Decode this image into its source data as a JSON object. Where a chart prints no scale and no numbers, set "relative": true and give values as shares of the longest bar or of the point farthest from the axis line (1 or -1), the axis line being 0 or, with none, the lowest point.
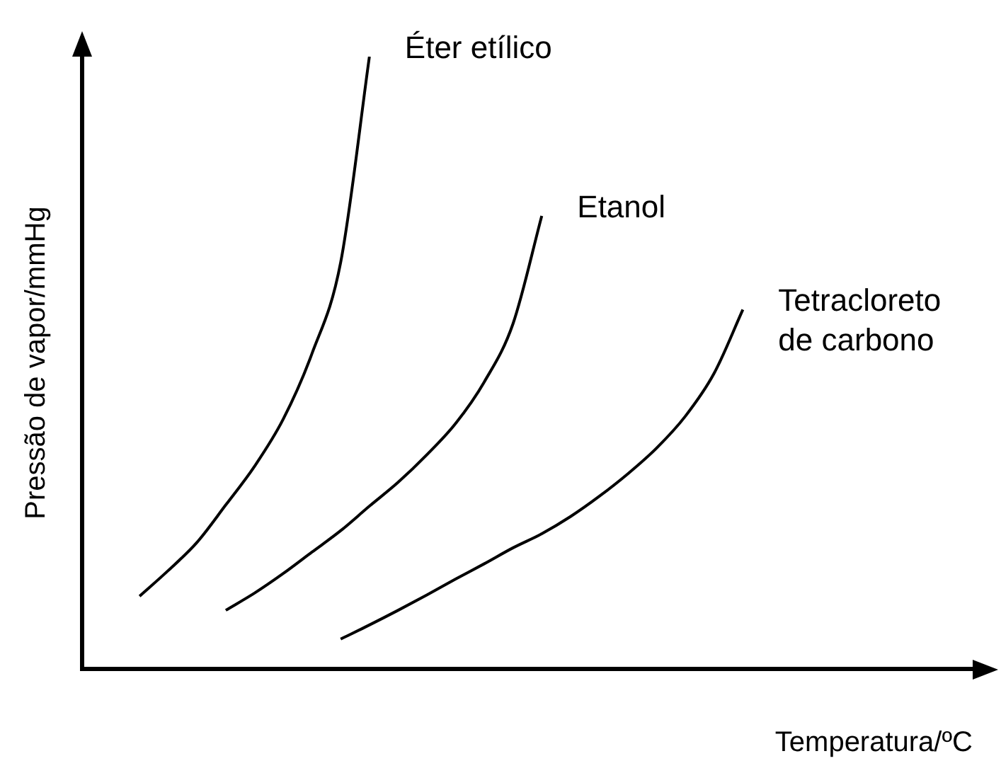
{
  "chart_data": {
    "type": "line",
    "relative": true,
    "xlabel": "Temperatura/ºC",
    "ylabel": "Pressão de vapor/mmHg",
    "legend": false,
    "grid": false,
    "marker": "none",
    "line_style": "solid",
    "categories": [
      null,
      null,
      null,
      null,
      null,
      null,
      null,
      null,
      null,
      null,
      null,
      null,
      null,
      null,
      null,
      null,
      null,
      null,
      null,
      null,
      null,
      null,
      null,
      null,
      null,
      null,
      null,
      null,
      null,
      null,
      null,
      null
    ],
    "series": [
      {
        "name": "Éter etílico",
        "color": "#000000",
        "values": [
          null,
          null,
          0.119,
          0.161,
          0.207,
          0.268,
          0.331,
          0.408,
          0.515,
          0.664,
          1,
          null,
          null,
          null,
          null,
          null,
          null,
          null,
          null,
          null,
          null,
          null,
          null,
          null,
          null,
          null,
          null,
          null,
          null,
          null,
          null,
          null
        ]
      },
      {
        "name": "Etanol",
        "color": "#000000",
        "values": [
          null,
          null,
          null,
          null,
          null,
          0.096,
          0.124,
          0.156,
          0.191,
          0.226,
          0.266,
          0.305,
          0.35,
          0.401,
          0.469,
          0.564,
          0.74,
          null,
          null,
          null,
          null,
          null,
          null,
          null,
          null,
          null,
          null,
          null,
          null,
          null,
          null,
          null
        ]
      },
      {
        "name": "Tetracloreto de carbono",
        "color": "#000000",
        "values": [
          null,
          null,
          null,
          null,
          null,
          null,
          null,
          null,
          null,
          0.049,
          0.072,
          0.096,
          0.121,
          0.147,
          0.172,
          0.198,
          0.221,
          0.249,
          0.282,
          0.319,
          0.361,
          0.413,
          0.483,
          0.587,
          null,
          null,
          null,
          null,
          null,
          null,
          null,
          null
        ]
      }
    ]
  }
}
